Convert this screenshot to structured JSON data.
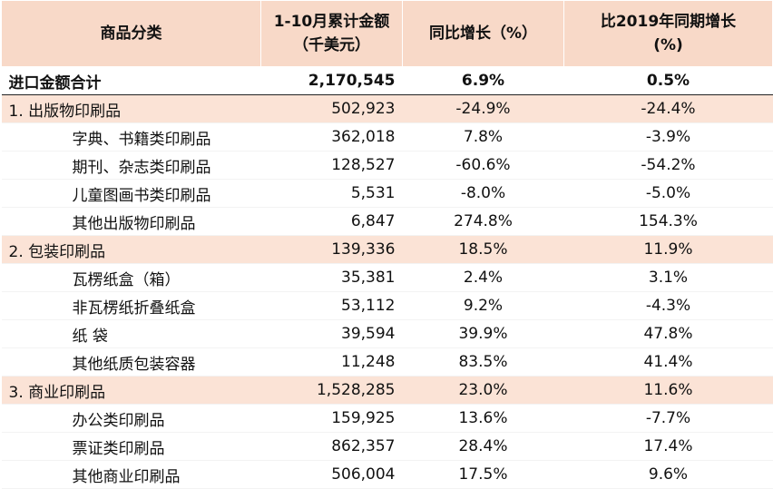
{
  "headers": {
    "category": "商品分类",
    "amount_line1": "1-10月累计金额",
    "amount_line2": "（千美元）",
    "yoy": "同比增长（%）",
    "vs2019_line1": "比2019年同期增长",
    "vs2019_line2": "(%)"
  },
  "rows": [
    {
      "type": "total",
      "name": "进口金额合计",
      "amount": "2,170,545",
      "yoy": "6.9%",
      "vs2019": "0.5%"
    },
    {
      "type": "cat",
      "name": "1. 出版物印刷品",
      "amount": "502,923",
      "yoy": "-24.9%",
      "vs2019": "-24.4%"
    },
    {
      "type": "sub",
      "name": "字典、书籍类印刷品",
      "amount": "362,018",
      "yoy": "7.8%",
      "vs2019": "-3.9%"
    },
    {
      "type": "sub",
      "name": "期刊、杂志类印刷品",
      "amount": "128,527",
      "yoy": "-60.6%",
      "vs2019": "-54.2%"
    },
    {
      "type": "sub",
      "name": "儿童图画书类印刷品",
      "amount": "5,531",
      "yoy": "-8.0%",
      "vs2019": "-5.0%"
    },
    {
      "type": "sub",
      "name": "其他出版物印刷品",
      "amount": "6,847",
      "yoy": "274.8%",
      "vs2019": "154.3%"
    },
    {
      "type": "cat",
      "name": "2. 包装印刷品",
      "amount": "139,336",
      "yoy": "18.5%",
      "vs2019": "11.9%"
    },
    {
      "type": "sub",
      "name": "瓦楞纸盒（箱）",
      "amount": "35,381",
      "yoy": "2.4%",
      "vs2019": "3.1%"
    },
    {
      "type": "sub",
      "name": "非瓦楞纸折叠纸盒",
      "amount": "53,112",
      "yoy": "9.2%",
      "vs2019": "-4.3%"
    },
    {
      "type": "sub",
      "name": "纸  袋",
      "amount": "39,594",
      "yoy": "39.9%",
      "vs2019": "47.8%"
    },
    {
      "type": "sub",
      "name": "其他纸质包装容器",
      "amount": "11,248",
      "yoy": "83.5%",
      "vs2019": "41.4%"
    },
    {
      "type": "cat",
      "name": "3. 商业印刷品",
      "amount": "1,528,285",
      "yoy": "23.0%",
      "vs2019": "11.6%"
    },
    {
      "type": "sub",
      "name": "办公类印刷品",
      "amount": "159,925",
      "yoy": "13.6%",
      "vs2019": "-7.7%"
    },
    {
      "type": "sub",
      "name": "票证类印刷品",
      "amount": "862,357",
      "yoy": "28.4%",
      "vs2019": "17.4%"
    },
    {
      "type": "sub",
      "name": "其他商业印刷品",
      "amount": "506,004",
      "yoy": "17.5%",
      "vs2019": "9.6%"
    }
  ]
}
